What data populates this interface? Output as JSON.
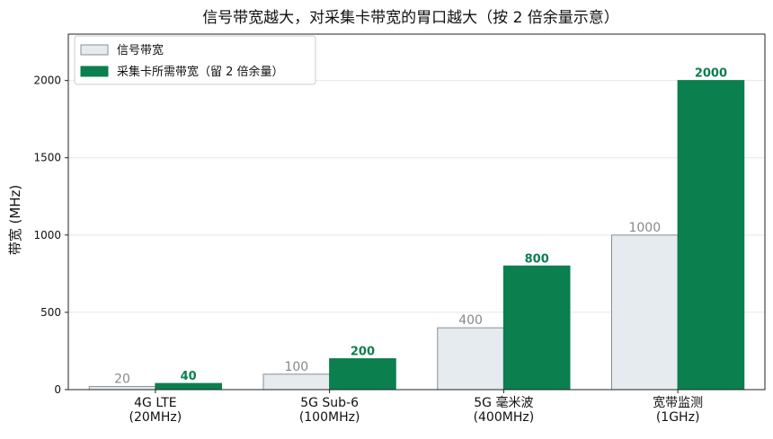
{
  "chart_data": {
    "type": "bar",
    "title": "信号带宽越大，对采集卡带宽的胃口越大（按 2 倍余量示意）",
    "ylabel": "带宽 (MHz)",
    "xlabel": "",
    "ylim": [
      0,
      2300
    ],
    "yticks": [
      0,
      500,
      1000,
      1500,
      2000
    ],
    "grid": true,
    "legend_position": "top-left",
    "categories": [
      [
        "4G LTE",
        "(20MHz)"
      ],
      [
        "5G Sub-6",
        "(100MHz)"
      ],
      [
        "5G 毫米波",
        "(400MHz)"
      ],
      [
        "宽带监测",
        "(1GHz)"
      ]
    ],
    "series": [
      {
        "name": "信号带宽",
        "values": [
          20,
          100,
          400,
          1000
        ],
        "color": "#e6ebef",
        "edge": "#8a8f94"
      },
      {
        "name": "采集卡所需带宽（留 2 倍余量）",
        "values": [
          40,
          200,
          800,
          2000
        ],
        "color": "#0b7f4e",
        "edge": "#0b7f4e"
      }
    ]
  }
}
